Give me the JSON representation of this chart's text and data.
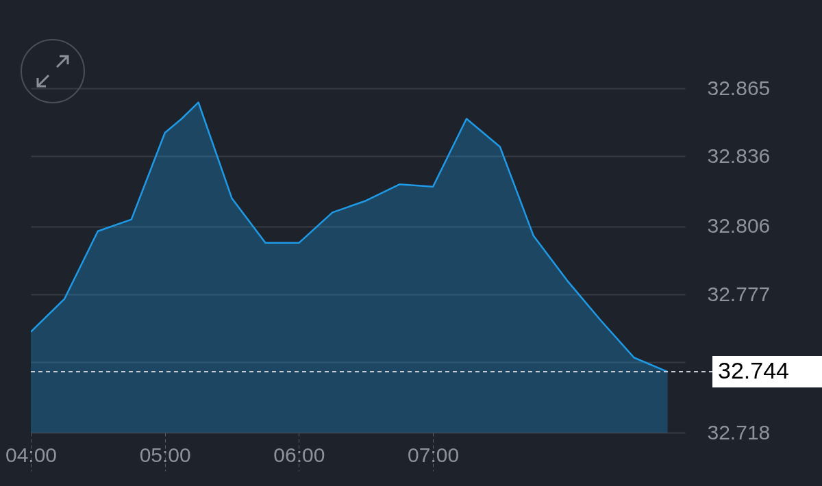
{
  "chart_data": {
    "type": "area",
    "x": [
      4,
      4.25,
      4.5,
      4.75,
      5,
      5.125,
      5.25,
      5.5,
      5.75,
      6,
      6.25,
      6.5,
      6.75,
      7,
      7.25,
      7.5,
      7.75,
      8,
      8.25,
      8.5,
      8.75
    ],
    "series": [
      {
        "color": "#1f9ae6",
        "values": [
          32.761,
          32.775,
          32.804,
          32.809,
          32.846,
          32.852,
          32.859,
          32.818,
          32.799,
          32.799,
          32.812,
          32.817,
          32.824,
          32.823,
          32.852,
          32.84,
          32.802,
          32.783,
          32.766,
          32.75,
          32.744
        ]
      }
    ],
    "xlim": [
      4,
      8.88
    ],
    "ylim": [
      32.718,
      32.865
    ],
    "xticks": [
      {
        "value": 4,
        "label": "04:00"
      },
      {
        "value": 5,
        "label": "05:00"
      },
      {
        "value": 6,
        "label": "06:00"
      },
      {
        "value": 7,
        "label": "07:00"
      }
    ],
    "yticks": [
      32.718,
      {
        "value": 32.748,
        "label": null
      },
      32.777,
      32.806,
      32.836,
      32.865
    ],
    "grid": "y",
    "ref_lines": [
      {
        "axis": "y",
        "value": 32.744,
        "label": "32.744",
        "line_style": "dashed",
        "color": "#c8ccd2"
      }
    ]
  }
}
